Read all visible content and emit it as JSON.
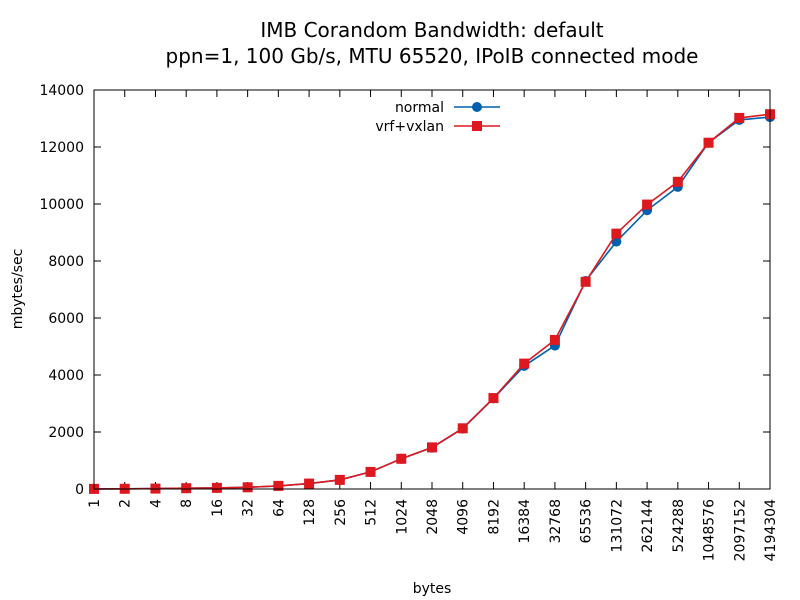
{
  "chart_data": {
    "type": "line",
    "title": "IMB Corandom Bandwidth: default",
    "subtitle": "ppn=1, 100 Gb/s, MTU 65520, IPoIB connected mode",
    "xlabel": "bytes",
    "ylabel": "mbytes/sec",
    "ylim": [
      0,
      14000
    ],
    "yticks": [
      "0",
      "2000",
      "4000",
      "6000",
      "8000",
      "10000",
      "12000",
      "14000"
    ],
    "categories": [
      "1",
      "2",
      "4",
      "8",
      "16",
      "32",
      "64",
      "128",
      "256",
      "512",
      "1024",
      "2048",
      "4096",
      "8192",
      "16384",
      "32768",
      "65536",
      "131072",
      "262144",
      "524288",
      "1048576",
      "2097152",
      "4194304"
    ],
    "legend_position": "top-center",
    "series": [
      {
        "name": "normal",
        "color": "#0060ad",
        "marker": "circle",
        "values": [
          4,
          8,
          15,
          28,
          40,
          60,
          110,
          190,
          320,
          600,
          1060,
          1450,
          2120,
          3180,
          4320,
          5030,
          7300,
          8680,
          9780,
          10600,
          12150,
          12950,
          13050
        ]
      },
      {
        "name": "vrf+vxlan",
        "color": "#dd181f",
        "marker": "square",
        "values": [
          4,
          8,
          15,
          28,
          40,
          60,
          110,
          190,
          320,
          600,
          1060,
          1460,
          2130,
          3190,
          4400,
          5230,
          7270,
          8960,
          9980,
          10780,
          12150,
          13020,
          13150
        ]
      }
    ]
  }
}
